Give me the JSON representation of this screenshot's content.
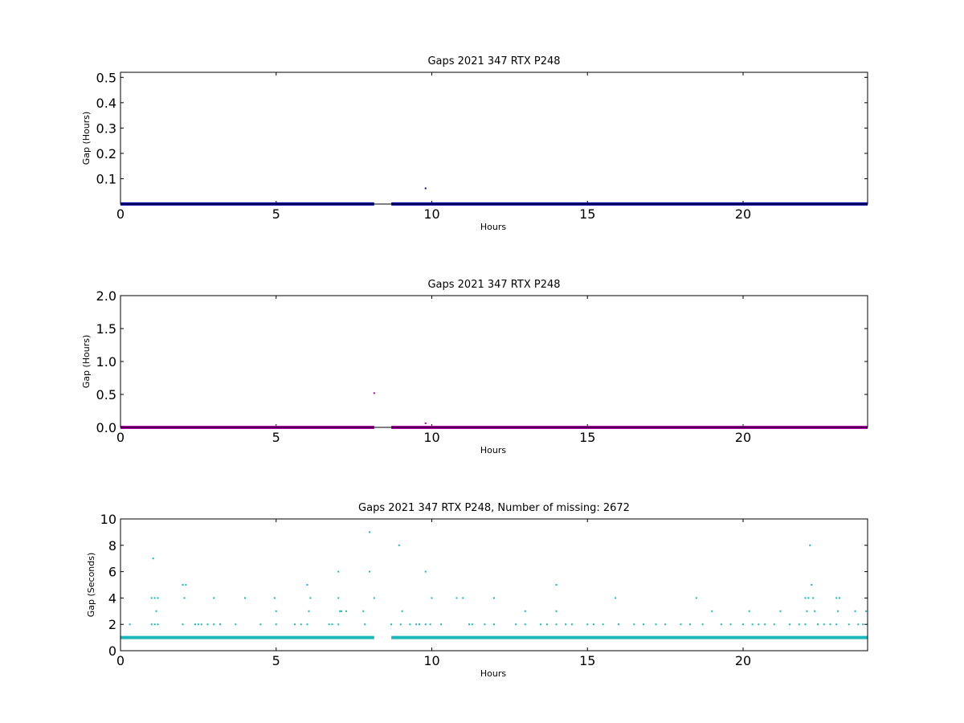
{
  "chart_data": [
    {
      "type": "scatter",
      "title": "Gaps 2021 347 RTX  P248",
      "xlabel": "Hours",
      "ylabel": "Gap (Hours)",
      "xlim": [
        0,
        24
      ],
      "ylim": [
        0,
        0.52
      ],
      "xticks": [
        0,
        5,
        10,
        15,
        20
      ],
      "yticks": [
        0.1,
        0.2,
        0.3,
        0.4,
        0.5
      ],
      "ytick_labels": [
        "0.1",
        "0.2",
        "0.3",
        "0.4",
        "0.5"
      ],
      "grid": false,
      "color": "#0000aa",
      "series": [
        {
          "baseline": {
            "y": 0.0003,
            "ranges": [
              [
                0,
                8.15
              ],
              [
                8.7,
                24
              ]
            ]
          },
          "points": [
            {
              "x": 9.8,
              "y": 0.062
            }
          ]
        }
      ]
    },
    {
      "type": "scatter",
      "title": "Gaps 2021 347 RTX  P248",
      "xlabel": "Hours",
      "ylabel": "Gap (Hours)",
      "xlim": [
        0,
        24
      ],
      "ylim": [
        0,
        2.0
      ],
      "xticks": [
        0,
        5,
        10,
        15,
        20
      ],
      "yticks": [
        0.0,
        0.5,
        1.0,
        1.5,
        2.0
      ],
      "ytick_labels": [
        "0.0",
        "0.5",
        "1.0",
        "1.5",
        "2.0"
      ],
      "grid": false,
      "color": "#aa00aa",
      "series": [
        {
          "baseline": {
            "y": 0.0003,
            "ranges": [
              [
                0,
                8.15
              ],
              [
                8.7,
                24
              ]
            ]
          },
          "points": [
            {
              "x": 8.15,
              "y": 0.52
            },
            {
              "x": 9.8,
              "y": 0.062
            }
          ]
        }
      ]
    },
    {
      "type": "scatter",
      "title": "Gaps 2021 347 RTX  P248, Number of missing: 2672",
      "xlabel": "Hours",
      "ylabel": "Gap (Seconds)",
      "xlim": [
        0,
        24
      ],
      "ylim": [
        0,
        10
      ],
      "xticks": [
        0,
        5,
        10,
        15,
        20
      ],
      "yticks": [
        0,
        2,
        4,
        6,
        8,
        10
      ],
      "ytick_labels": [
        "0",
        "2",
        "4",
        "6",
        "8",
        "10"
      ],
      "grid": false,
      "color": "#1ab8b8",
      "series": [
        {
          "baseline": {
            "y": 1,
            "ranges": [
              [
                0,
                8.15
              ],
              [
                8.7,
                24
              ]
            ]
          },
          "points": [
            {
              "x": 0.3,
              "y": 2
            },
            {
              "x": 1.0,
              "y": 4
            },
            {
              "x": 1.05,
              "y": 7
            },
            {
              "x": 1.1,
              "y": 4
            },
            {
              "x": 1.15,
              "y": 3
            },
            {
              "x": 1.2,
              "y": 4
            },
            {
              "x": 1.0,
              "y": 2
            },
            {
              "x": 1.1,
              "y": 2
            },
            {
              "x": 1.2,
              "y": 2
            },
            {
              "x": 2.0,
              "y": 5
            },
            {
              "x": 2.05,
              "y": 4
            },
            {
              "x": 2.1,
              "y": 5
            },
            {
              "x": 2.0,
              "y": 2
            },
            {
              "x": 2.4,
              "y": 2
            },
            {
              "x": 2.5,
              "y": 2
            },
            {
              "x": 2.6,
              "y": 2
            },
            {
              "x": 2.8,
              "y": 2
            },
            {
              "x": 3.0,
              "y": 4
            },
            {
              "x": 3.0,
              "y": 2
            },
            {
              "x": 3.2,
              "y": 2
            },
            {
              "x": 3.7,
              "y": 2
            },
            {
              "x": 4.0,
              "y": 4
            },
            {
              "x": 4.5,
              "y": 2
            },
            {
              "x": 4.95,
              "y": 4
            },
            {
              "x": 5.0,
              "y": 3
            },
            {
              "x": 5.0,
              "y": 2
            },
            {
              "x": 5.6,
              "y": 2
            },
            {
              "x": 5.8,
              "y": 2
            },
            {
              "x": 6.0,
              "y": 5
            },
            {
              "x": 6.05,
              "y": 3
            },
            {
              "x": 6.0,
              "y": 2
            },
            {
              "x": 6.1,
              "y": 4
            },
            {
              "x": 6.7,
              "y": 2
            },
            {
              "x": 6.8,
              "y": 2
            },
            {
              "x": 7.0,
              "y": 6
            },
            {
              "x": 7.0,
              "y": 4
            },
            {
              "x": 7.05,
              "y": 3
            },
            {
              "x": 7.1,
              "y": 3
            },
            {
              "x": 7.0,
              "y": 2
            },
            {
              "x": 7.25,
              "y": 3
            },
            {
              "x": 7.8,
              "y": 3
            },
            {
              "x": 7.85,
              "y": 2
            },
            {
              "x": 8.0,
              "y": 9
            },
            {
              "x": 8.0,
              "y": 6
            },
            {
              "x": 8.15,
              "y": 4
            },
            {
              "x": 8.7,
              "y": 2
            },
            {
              "x": 8.95,
              "y": 8
            },
            {
              "x": 9.0,
              "y": 2
            },
            {
              "x": 9.05,
              "y": 3
            },
            {
              "x": 9.3,
              "y": 2
            },
            {
              "x": 9.5,
              "y": 2
            },
            {
              "x": 9.6,
              "y": 2
            },
            {
              "x": 9.8,
              "y": 6
            },
            {
              "x": 9.8,
              "y": 2
            },
            {
              "x": 9.95,
              "y": 2
            },
            {
              "x": 10.0,
              "y": 4
            },
            {
              "x": 10.3,
              "y": 2
            },
            {
              "x": 10.8,
              "y": 4
            },
            {
              "x": 11.0,
              "y": 4
            },
            {
              "x": 11.2,
              "y": 2
            },
            {
              "x": 11.3,
              "y": 2
            },
            {
              "x": 11.7,
              "y": 2
            },
            {
              "x": 12.0,
              "y": 4
            },
            {
              "x": 12.0,
              "y": 2
            },
            {
              "x": 12.7,
              "y": 2
            },
            {
              "x": 13.0,
              "y": 3
            },
            {
              "x": 13.0,
              "y": 2
            },
            {
              "x": 13.5,
              "y": 2
            },
            {
              "x": 13.7,
              "y": 2
            },
            {
              "x": 14.0,
              "y": 5
            },
            {
              "x": 14.0,
              "y": 3
            },
            {
              "x": 14.0,
              "y": 2
            },
            {
              "x": 14.3,
              "y": 2
            },
            {
              "x": 14.5,
              "y": 2
            },
            {
              "x": 15.0,
              "y": 2
            },
            {
              "x": 15.2,
              "y": 2
            },
            {
              "x": 15.5,
              "y": 2
            },
            {
              "x": 15.9,
              "y": 4
            },
            {
              "x": 16.0,
              "y": 2
            },
            {
              "x": 16.5,
              "y": 2
            },
            {
              "x": 16.8,
              "y": 2
            },
            {
              "x": 17.2,
              "y": 2
            },
            {
              "x": 17.5,
              "y": 2
            },
            {
              "x": 18.0,
              "y": 2
            },
            {
              "x": 18.3,
              "y": 2
            },
            {
              "x": 18.5,
              "y": 4
            },
            {
              "x": 18.7,
              "y": 2
            },
            {
              "x": 19.0,
              "y": 3
            },
            {
              "x": 19.3,
              "y": 2
            },
            {
              "x": 19.6,
              "y": 2
            },
            {
              "x": 20.0,
              "y": 2
            },
            {
              "x": 20.2,
              "y": 3
            },
            {
              "x": 20.3,
              "y": 2
            },
            {
              "x": 20.5,
              "y": 2
            },
            {
              "x": 20.7,
              "y": 2
            },
            {
              "x": 21.0,
              "y": 2
            },
            {
              "x": 21.2,
              "y": 3
            },
            {
              "x": 21.5,
              "y": 2
            },
            {
              "x": 21.8,
              "y": 2
            },
            {
              "x": 22.0,
              "y": 4
            },
            {
              "x": 22.05,
              "y": 3
            },
            {
              "x": 22.1,
              "y": 4
            },
            {
              "x": 22.15,
              "y": 8
            },
            {
              "x": 22.2,
              "y": 5
            },
            {
              "x": 22.25,
              "y": 4
            },
            {
              "x": 22.3,
              "y": 3
            },
            {
              "x": 22.0,
              "y": 2
            },
            {
              "x": 22.4,
              "y": 2
            },
            {
              "x": 22.6,
              "y": 2
            },
            {
              "x": 22.8,
              "y": 2
            },
            {
              "x": 23.0,
              "y": 4
            },
            {
              "x": 23.05,
              "y": 3
            },
            {
              "x": 23.1,
              "y": 4
            },
            {
              "x": 23.0,
              "y": 2
            },
            {
              "x": 23.4,
              "y": 2
            },
            {
              "x": 23.6,
              "y": 3
            },
            {
              "x": 23.7,
              "y": 2
            },
            {
              "x": 23.85,
              "y": 2
            },
            {
              "x": 23.95,
              "y": 3
            }
          ]
        }
      ]
    }
  ]
}
